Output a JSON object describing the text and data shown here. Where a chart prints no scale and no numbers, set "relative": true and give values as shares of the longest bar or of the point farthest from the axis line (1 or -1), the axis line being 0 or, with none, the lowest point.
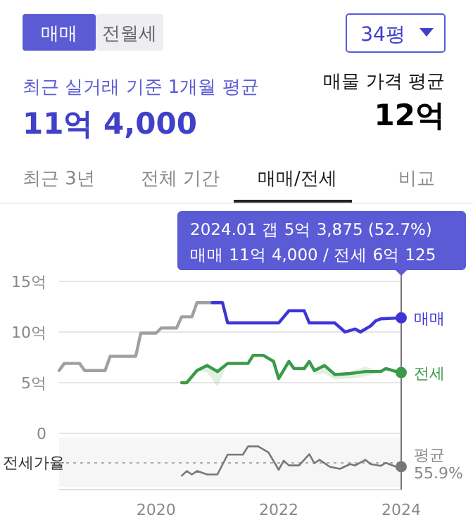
{
  "chart_data": [
    {
      "type": "other",
      "annotations": [
        "매매",
        "전월세",
        "34평",
        "최근 실거래 기준 1개월 평균",
        "11억 4,000",
        "매물 가격 평균",
        "12억",
        "최근 3년",
        "전체 기간",
        "매매/전세",
        "비교"
      ]
    },
    {
      "type": "line",
      "annotations": [
        "2024.01  갭 5억 3,875 (52.7%)",
        "매매 11억 4,000 / 전세 6억 125"
      ],
      "xlim": [
        "2018-06",
        "2024-01"
      ],
      "ylim": [
        0,
        15
      ],
      "yticks": [
        {
          "value": 0,
          "label": "0"
        },
        {
          "value": 5,
          "label": "5억"
        },
        {
          "value": 10,
          "label": "10억"
        },
        {
          "value": 15,
          "label": "15억"
        }
      ],
      "grid": "y",
      "tick_labels": "y",
      "ref_lines": [
        {
          "axis": "x",
          "value": "2024-01",
          "color": "#777777"
        }
      ],
      "series": [
        {
          "color": "#a0a0a0",
          "x": [
            "2018-06",
            "2018-07",
            "2018-10",
            "2018-11",
            "2019-03",
            "2019-04",
            "2019-09",
            "2019-10",
            "2020-01",
            "2020-02",
            "2020-05",
            "2020-06",
            "2020-08",
            "2020-09",
            "2020-12"
          ],
          "values": [
            6.2,
            6.9,
            6.9,
            6.2,
            6.2,
            7.6,
            7.6,
            9.9,
            9.9,
            10.4,
            10.4,
            11.5,
            11.5,
            12.9,
            12.9
          ]
        },
        {
          "name": "매매",
          "color": "#3d35d8",
          "x": [
            "2020-12",
            "2021-02",
            "2021-03",
            "2022-01",
            "2022-03",
            "2022-06",
            "2022-07",
            "2022-12",
            "2023-02",
            "2023-04",
            "2023-05",
            "2023-07",
            "2023-08",
            "2023-09",
            "2024-01"
          ],
          "values": [
            12.9,
            12.9,
            10.9,
            10.9,
            12.1,
            12.1,
            10.9,
            10.9,
            10.0,
            10.3,
            10.0,
            10.6,
            11.1,
            11.3,
            11.4
          ]
        },
        {
          "name": "전세",
          "color": "#3a9a48",
          "x": [
            "2020-06",
            "2020-07",
            "2020-09",
            "2020-11",
            "2021-01",
            "2021-03",
            "2021-07",
            "2021-08",
            "2021-10",
            "2021-12",
            "2022-01",
            "2022-03",
            "2022-04",
            "2022-06",
            "2022-07",
            "2022-08",
            "2022-10",
            "2022-12",
            "2023-03",
            "2023-06",
            "2023-09",
            "2023-10",
            "2023-12",
            "2024-01"
          ],
          "values": [
            5.0,
            5.0,
            6.2,
            6.7,
            6.1,
            6.9,
            6.9,
            7.7,
            7.7,
            7.1,
            5.4,
            7.1,
            6.4,
            6.4,
            7.1,
            6.2,
            6.7,
            5.8,
            5.9,
            6.1,
            6.1,
            6.4,
            6.1,
            6.0
          ],
          "lower": [
            5.0,
            5.0,
            6.2,
            6.0,
            4.6,
            6.9,
            6.9,
            7.7,
            7.7,
            7.1,
            5.4,
            7.1,
            6.4,
            6.1,
            6.6,
            5.8,
            5.9,
            5.3,
            5.4,
            5.6,
            6.1,
            6.4,
            6.0,
            5.6
          ],
          "upper": [
            5.0,
            5.0,
            6.2,
            6.8,
            6.3,
            7.0,
            6.9,
            7.7,
            7.7,
            7.1,
            5.4,
            7.1,
            6.4,
            6.6,
            7.1,
            6.4,
            6.7,
            5.9,
            6.1,
            6.6,
            6.1,
            6.4,
            6.1,
            6.2
          ]
        }
      ]
    },
    {
      "type": "line",
      "relative": true,
      "ylabel": "전세가율",
      "xlim": [
        "2018-06",
        "2024-01"
      ],
      "xticks": [
        "2020",
        "2022",
        "2024"
      ],
      "ref_lines": [
        {
          "axis": "y",
          "value": 0.62,
          "label": "평균 55.9%",
          "line_style": "dotted",
          "color": "#aaaaaa"
        },
        {
          "axis": "x",
          "value": "2024-01",
          "color": "#777777"
        }
      ],
      "series": [
        {
          "color": "#777777",
          "x": [
            "2020-06",
            "2020-07",
            "2020-08",
            "2020-09",
            "2020-11",
            "2021-01",
            "2021-03",
            "2021-06",
            "2021-07",
            "2021-09",
            "2021-11",
            "2022-01",
            "2022-02",
            "2022-03",
            "2022-05",
            "2022-07",
            "2022-08",
            "2022-09",
            "2022-11",
            "2023-01",
            "2023-03",
            "2023-04",
            "2023-06",
            "2023-07",
            "2023-09",
            "2023-10",
            "2023-12",
            "2024-01"
          ],
          "values": [
            0.32,
            0.43,
            0.35,
            0.43,
            0.35,
            0.35,
            0.81,
            0.81,
            1,
            1,
            0.86,
            0.46,
            0.67,
            0.56,
            0.56,
            0.82,
            0.61,
            0.69,
            0.53,
            0.48,
            0.59,
            0.56,
            0.69,
            0.59,
            0.55,
            0.62,
            0.53,
            0.53
          ]
        }
      ]
    }
  ]
}
